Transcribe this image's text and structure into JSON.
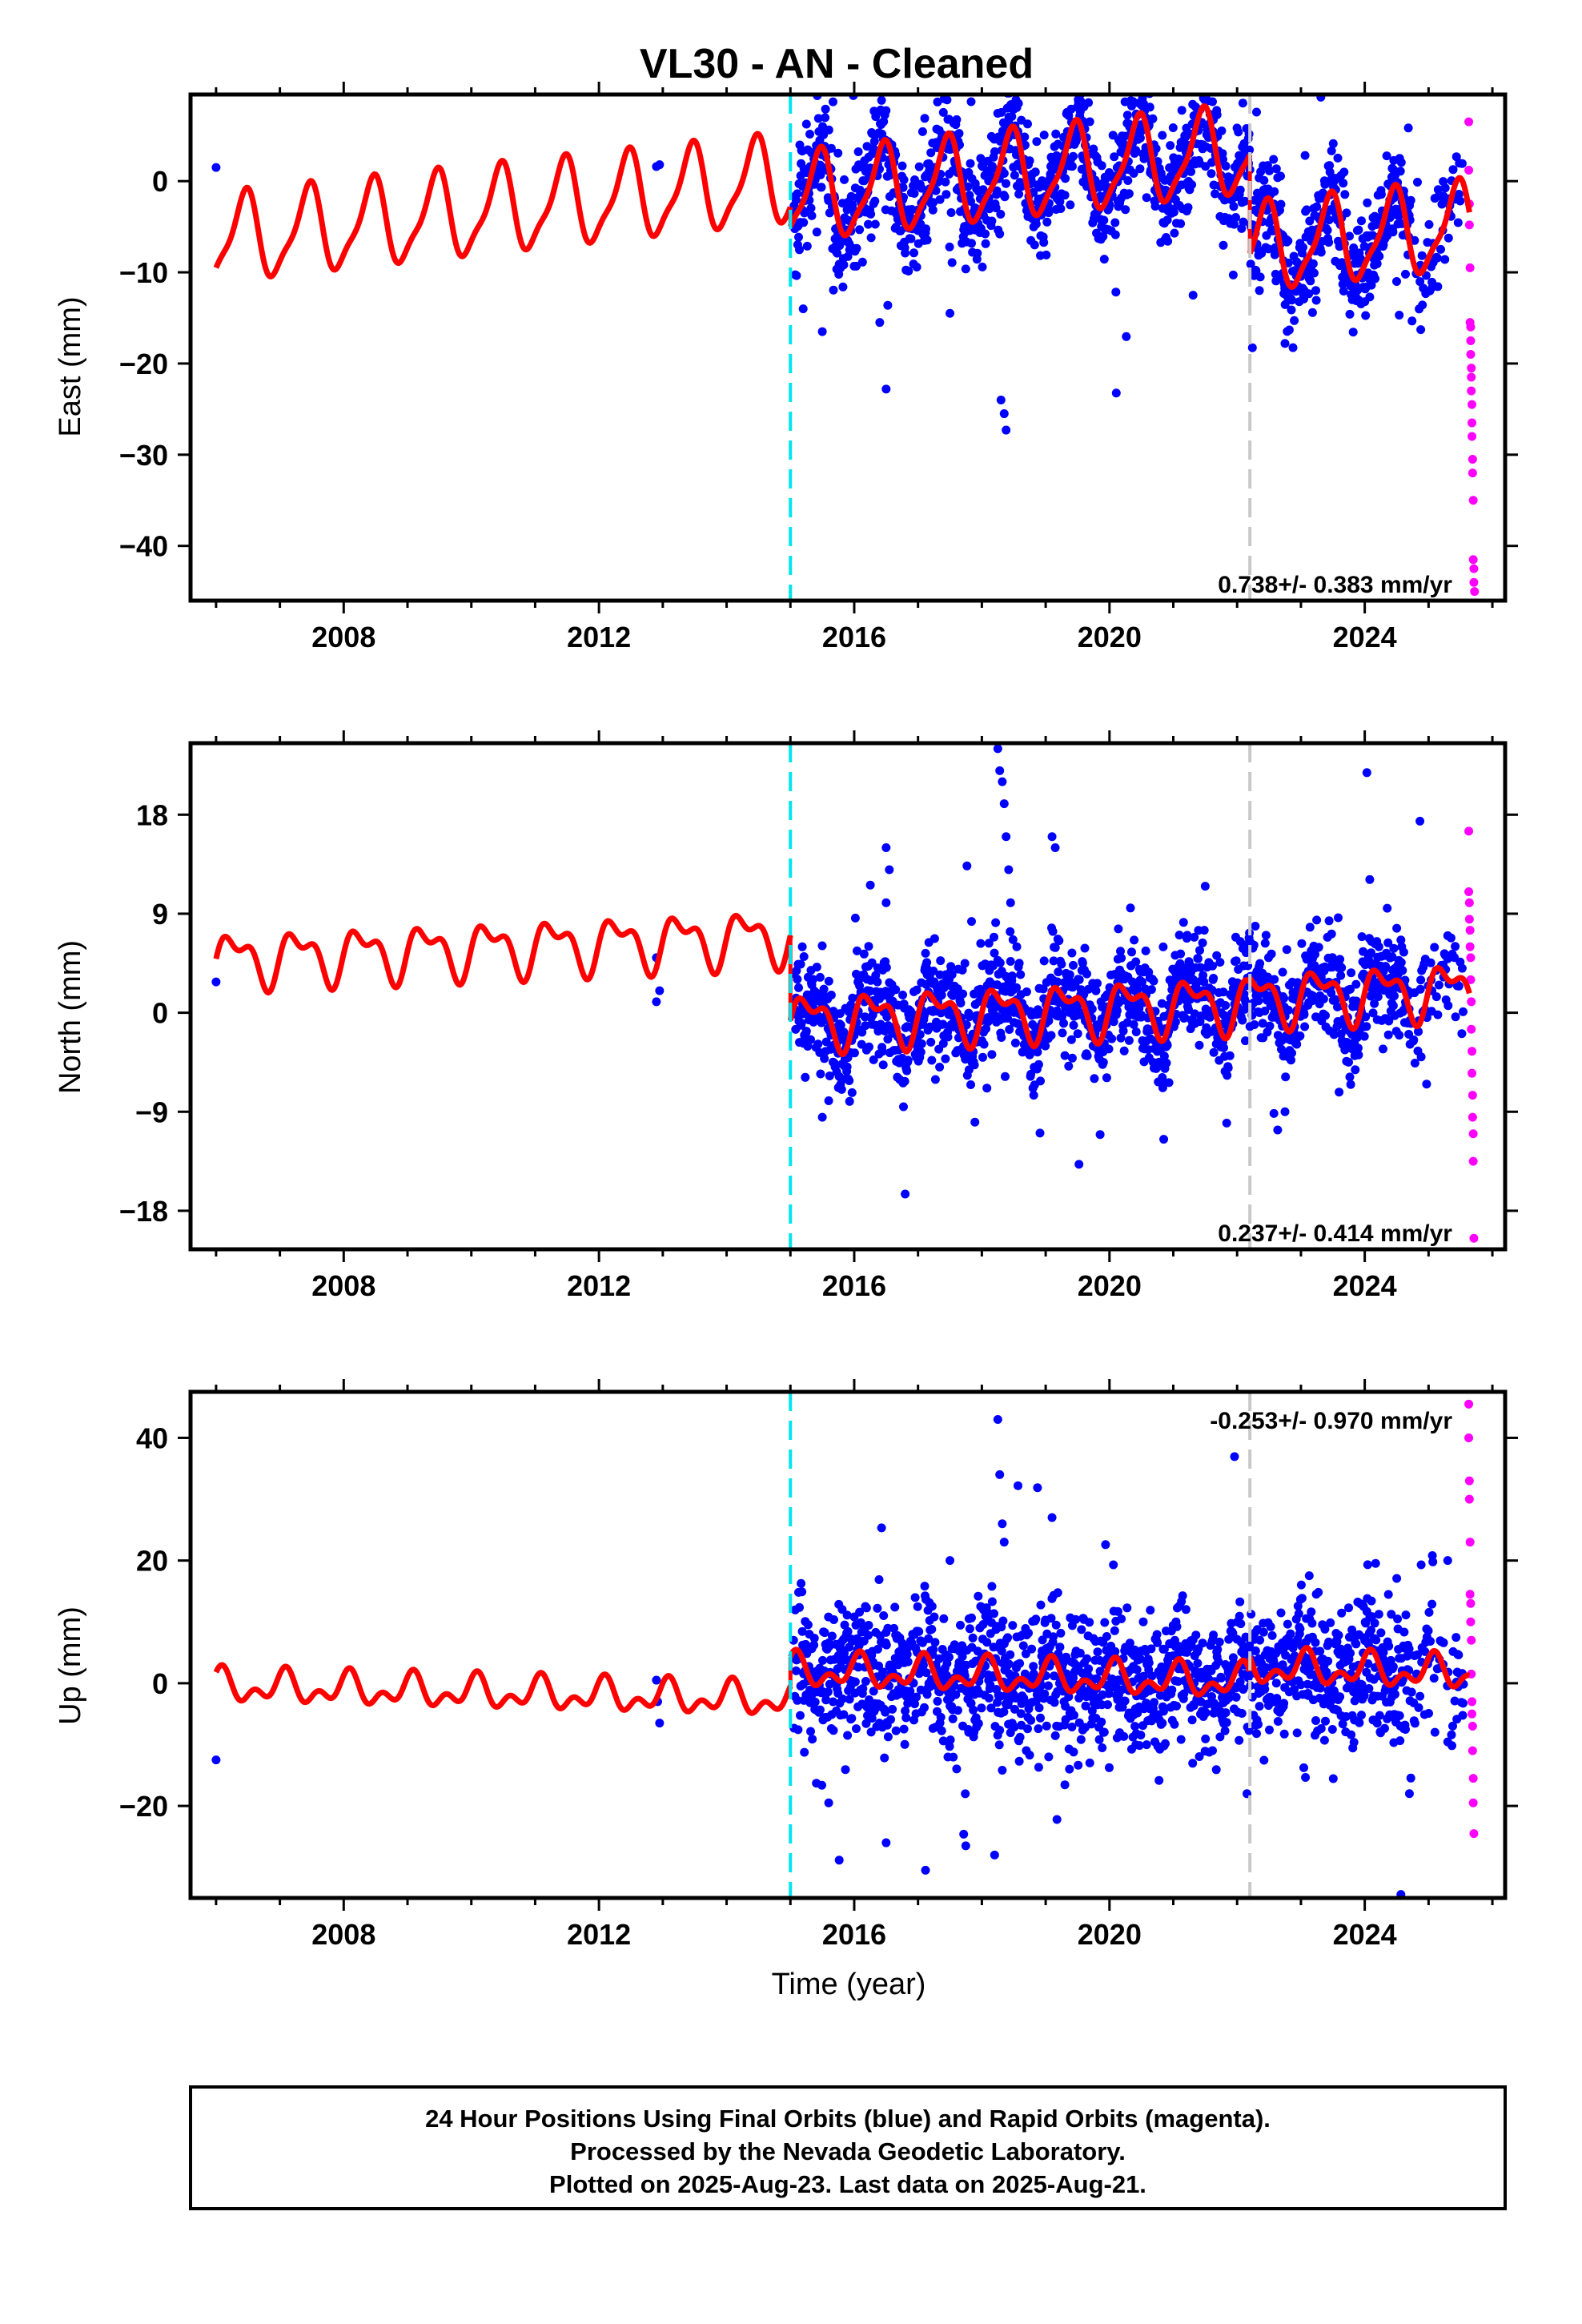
{
  "title": "VL30  - AN - Cleaned",
  "xlabel": "Time (year)",
  "footer": {
    "line1": "24 Hour Positions Using Final Orbits (blue) and Rapid Orbits (magenta).",
    "line2": "Processed by the Nevada Geodetic Laboratory.",
    "line3": "Plotted on 2025-Aug-23. Last data on 2025-Aug-21."
  },
  "colors": {
    "final_orbits": "#0000ff",
    "rapid_orbits": "#ff00ff",
    "model": "#ff0000",
    "antenna_change": "#00e5ee",
    "equipment_change": "#c8c8c8"
  },
  "chart_data": [
    {
      "type": "scatter",
      "name": "east",
      "ylabel": "East (mm)",
      "xlim": [
        2005.6,
        2026.2
      ],
      "ylim": [
        -46,
        9.5
      ],
      "xticks": [
        2008,
        2012,
        2016,
        2020,
        2024
      ],
      "xtick_labels": [
        "2008",
        "2012",
        "2016",
        "2020",
        "2024"
      ],
      "yticks": [
        0,
        -10,
        -20,
        -30,
        -40
      ],
      "ytick_labels": [
        "0",
        "−10",
        "−20",
        "−30",
        "−40"
      ],
      "rate": "0.738+/- 0.383 mm/yr",
      "rate_position": "bottom-right",
      "steps": [
        {
          "year": 2015.0,
          "color": "cyan"
        },
        {
          "year": 2022.2,
          "color": "gray"
        }
      ],
      "model_segments": [
        {
          "x_start": 2006.0,
          "x_end": 2015.0,
          "offset_at_start": -6.5,
          "slope": 0.738,
          "sin": 1.7,
          "cos": -4.2,
          "sin2": 0.4,
          "cos2": 1.2
        },
        {
          "x_start": 2015.0,
          "x_end": 2022.2,
          "offset_at_start": -2.0,
          "slope": 0.738,
          "sin": 1.7,
          "cos": -4.2,
          "sin2": 0.4,
          "cos2": 1.2
        },
        {
          "x_start": 2022.2,
          "x_end": 2025.65,
          "offset_at_start": -7.5,
          "slope": 0.738,
          "sin": 1.7,
          "cos": -4.2,
          "sin2": 0.4,
          "cos2": 1.2
        }
      ],
      "final_points": [
        [
          2006.0,
          1.5
        ],
        [
          2012.9,
          1.6
        ],
        [
          2012.95,
          1.8
        ],
        [
          2018.3,
          -24
        ],
        [
          2018.35,
          -25.5
        ],
        [
          2018.38,
          -27.3
        ],
        [
          2016.5,
          -22.8
        ],
        [
          2017.5,
          -14.5
        ],
        [
          2022.75,
          -17.8
        ],
        [
          2024.2,
          -8.0
        ],
        [
          2024.5,
          -11.0
        ],
        [
          2015.2,
          -14.0
        ],
        [
          2015.5,
          -16.5
        ],
        [
          2016.4,
          -15.5
        ],
        [
          2025.4,
          -2.0
        ]
      ],
      "rapid_points": [
        [
          2025.63,
          6.5
        ],
        [
          2025.63,
          1.2
        ],
        [
          2025.64,
          -2.5
        ],
        [
          2025.64,
          -4.8
        ],
        [
          2025.65,
          -9.5
        ],
        [
          2025.65,
          -15.5
        ],
        [
          2025.66,
          -16.0
        ],
        [
          2025.66,
          -17.5
        ],
        [
          2025.66,
          -19.0
        ],
        [
          2025.67,
          -20.5
        ],
        [
          2025.67,
          -21.5
        ],
        [
          2025.67,
          -23.0
        ],
        [
          2025.68,
          -24.5
        ],
        [
          2025.68,
          -26.5
        ],
        [
          2025.68,
          -28.0
        ],
        [
          2025.69,
          -30.5
        ],
        [
          2025.69,
          -32.0
        ],
        [
          2025.7,
          -35.0
        ],
        [
          2025.7,
          -41.5
        ],
        [
          2025.71,
          -42.5
        ],
        [
          2025.71,
          -44.0
        ],
        [
          2025.72,
          -45.0
        ]
      ]
    },
    {
      "type": "scatter",
      "name": "north",
      "ylabel": "North (mm)",
      "xlim": [
        2005.6,
        2026.2
      ],
      "ylim": [
        -21.5,
        24.5
      ],
      "xticks": [
        2008,
        2012,
        2016,
        2020,
        2024
      ],
      "xtick_labels": [
        "2008",
        "2012",
        "2016",
        "2020",
        "2024"
      ],
      "yticks": [
        18,
        9,
        0,
        -9,
        -18
      ],
      "ytick_labels": [
        "18",
        "9",
        "0",
        "−9",
        "−18"
      ],
      "rate": "0.237+/- 0.414 mm/yr",
      "rate_position": "bottom-right",
      "steps": [
        {
          "year": 2015.0,
          "color": "cyan"
        },
        {
          "year": 2022.2,
          "color": "gray"
        }
      ],
      "model_segments": [
        {
          "x_start": 2006.0,
          "x_end": 2015.0,
          "offset_at_start": 4.8,
          "slope": 0.237,
          "sin": 2.0,
          "cos": -0.5,
          "sin2": 1.0,
          "cos2": 0.6
        },
        {
          "x_start": 2015.0,
          "x_end": 2022.2,
          "offset_at_start": -0.8,
          "slope": 0.237,
          "sin": 2.0,
          "cos": -0.5,
          "sin2": 1.0,
          "cos2": 0.6
        },
        {
          "x_start": 2022.2,
          "x_end": 2025.65,
          "offset_at_start": 1.3,
          "slope": 0.237,
          "sin": 2.0,
          "cos": -0.5,
          "sin2": 1.0,
          "cos2": 0.6
        }
      ],
      "final_points": [
        [
          2006.0,
          2.8
        ],
        [
          2012.9,
          5.0
        ],
        [
          2012.9,
          1.0
        ],
        [
          2012.95,
          2.0
        ],
        [
          2018.25,
          24.0
        ],
        [
          2018.28,
          22.0
        ],
        [
          2018.32,
          21.0
        ],
        [
          2018.35,
          19.0
        ],
        [
          2018.38,
          16.0
        ],
        [
          2018.42,
          13.0
        ],
        [
          2018.45,
          10.0
        ],
        [
          2019.1,
          16.0
        ],
        [
          2019.15,
          15.0
        ],
        [
          2016.5,
          15.0
        ],
        [
          2016.55,
          13.0
        ],
        [
          2016.5,
          10.0
        ],
        [
          2021.5,
          11.5
        ],
        [
          2020.85,
          -11.5
        ],
        [
          2022.75,
          -9.0
        ],
        [
          2015.5,
          -9.5
        ],
        [
          2015.6,
          -8.0
        ],
        [
          2025.3,
          7.0
        ]
      ],
      "rapid_points": [
        [
          2025.63,
          16.5
        ],
        [
          2025.63,
          11.0
        ],
        [
          2025.64,
          10.0
        ],
        [
          2025.64,
          8.5
        ],
        [
          2025.65,
          7.5
        ],
        [
          2025.65,
          6.0
        ],
        [
          2025.66,
          5.0
        ],
        [
          2025.66,
          3.0
        ],
        [
          2025.67,
          1.0
        ],
        [
          2025.67,
          -1.5
        ],
        [
          2025.68,
          -3.5
        ],
        [
          2025.68,
          -5.5
        ],
        [
          2025.69,
          -7.5
        ],
        [
          2025.69,
          -9.5
        ],
        [
          2025.7,
          -11.0
        ],
        [
          2025.7,
          -13.5
        ],
        [
          2025.71,
          -20.5
        ]
      ]
    },
    {
      "type": "scatter",
      "name": "up",
      "ylabel": "Up (mm)",
      "xlim": [
        2005.6,
        2026.2
      ],
      "ylim": [
        -35,
        47.5
      ],
      "xticks": [
        2008,
        2012,
        2016,
        2020,
        2024
      ],
      "xtick_labels": [
        "2008",
        "2012",
        "2016",
        "2020",
        "2024"
      ],
      "yticks": [
        40,
        20,
        0,
        -20
      ],
      "ytick_labels": [
        "40",
        "20",
        "0",
        "−20"
      ],
      "rate": "-0.253+/- 0.970 mm/yr",
      "rate_position": "top-right",
      "steps": [
        {
          "year": 2015.0,
          "color": "cyan"
        },
        {
          "year": 2022.2,
          "color": "gray"
        }
      ],
      "model_segments": [
        {
          "x_start": 2006.0,
          "x_end": 2015.0,
          "offset_at_start": -0.5,
          "slope": -0.253,
          "sin": 0.8,
          "cos": 1.8,
          "sin2": 1.5,
          "cos2": 0.5
        },
        {
          "x_start": 2015.0,
          "x_end": 2022.2,
          "offset_at_start": 2.0,
          "slope": -0.253,
          "sin": 0.8,
          "cos": 1.8,
          "sin2": 1.5,
          "cos2": 0.5
        },
        {
          "x_start": 2022.2,
          "x_end": 2025.65,
          "offset_at_start": 2.5,
          "slope": -0.253,
          "sin": 0.8,
          "cos": 1.8,
          "sin2": 1.5,
          "cos2": 0.5
        }
      ],
      "final_points": [
        [
          2006.0,
          -12.5
        ],
        [
          2012.9,
          0.5
        ],
        [
          2012.95,
          -6.5
        ],
        [
          2012.92,
          -3.0
        ],
        [
          2018.25,
          43.0
        ],
        [
          2018.28,
          34.0
        ],
        [
          2018.32,
          26.0
        ],
        [
          2018.35,
          23.0
        ],
        [
          2019.1,
          27.0
        ],
        [
          2017.5,
          20.0
        ],
        [
          2016.5,
          -26.0
        ],
        [
          2018.2,
          -28.0
        ],
        [
          2015.6,
          -19.5
        ],
        [
          2024.7,
          -18.0
        ],
        [
          2025.3,
          20.0
        ],
        [
          2025.1,
          -8.0
        ]
      ],
      "rapid_points": [
        [
          2025.63,
          45.5
        ],
        [
          2025.63,
          40.0
        ],
        [
          2025.64,
          33.0
        ],
        [
          2025.64,
          30.0
        ],
        [
          2025.65,
          23.0
        ],
        [
          2025.65,
          14.5
        ],
        [
          2025.66,
          13.0
        ],
        [
          2025.66,
          10.0
        ],
        [
          2025.67,
          7.0
        ],
        [
          2025.67,
          1.5
        ],
        [
          2025.68,
          -3.0
        ],
        [
          2025.68,
          -5.0
        ],
        [
          2025.69,
          -7.0
        ],
        [
          2025.69,
          -11.0
        ],
        [
          2025.7,
          -15.5
        ],
        [
          2025.7,
          -19.5
        ],
        [
          2025.71,
          -24.5
        ]
      ]
    }
  ]
}
